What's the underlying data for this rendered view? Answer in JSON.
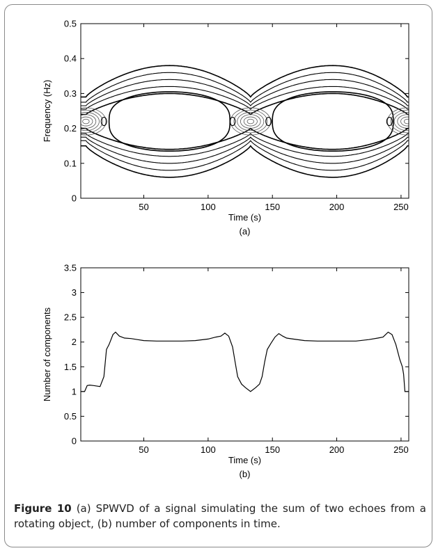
{
  "chart_data": [
    {
      "type": "contour",
      "panel_label": "(a)",
      "xlabel": "Time (s)",
      "ylabel": "Frequency (Hz)",
      "xlim": [
        1,
        256
      ],
      "ylim": [
        0,
        0.5
      ],
      "xticks": [
        50,
        100,
        150,
        200,
        250
      ],
      "yticks": [
        0,
        0.1,
        0.2,
        0.3,
        0.4,
        0.5
      ],
      "grid": false,
      "legend": "none",
      "contour_bands": [
        {
          "level": "outer",
          "half_width_at_center": 0.16,
          "half_width_at_crossing": 0.07
        },
        {
          "level": "2",
          "half_width_at_center": 0.14,
          "half_width_at_crossing": 0.055
        },
        {
          "level": "3",
          "half_width_at_center": 0.12,
          "half_width_at_crossing": 0.045
        },
        {
          "level": "4",
          "half_width_at_center": 0.1,
          "half_width_at_crossing": 0.035
        },
        {
          "level": "inner",
          "half_width_at_center": 0.08,
          "half_width_at_crossing": 0.02
        }
      ],
      "lobe_centers_time": [
        70,
        197
      ],
      "crossings_time": [
        5,
        133,
        255
      ],
      "mean_frequency": 0.22,
      "line_color": "#000000"
    },
    {
      "type": "line",
      "panel_label": "(b)",
      "xlabel": "Time (s)",
      "ylabel": "Number of components",
      "xlim": [
        1,
        256
      ],
      "ylim": [
        0,
        3.5
      ],
      "xticks": [
        50,
        100,
        150,
        200,
        250
      ],
      "yticks": [
        0,
        0.5,
        1,
        1.5,
        2,
        2.5,
        3,
        3.5
      ],
      "grid": false,
      "legend": "none",
      "x": [
        1,
        4,
        6,
        8,
        11,
        16,
        19,
        21,
        23,
        26,
        28,
        31,
        35,
        40,
        45,
        50,
        60,
        70,
        80,
        90,
        100,
        106,
        110,
        113,
        116,
        119,
        121,
        123,
        126,
        129,
        133,
        137,
        140,
        142,
        144,
        146,
        149,
        152,
        155,
        158,
        161,
        166,
        175,
        185,
        195,
        205,
        215,
        225,
        232,
        236,
        240,
        243,
        246,
        249,
        251,
        252,
        253,
        254,
        256
      ],
      "y": [
        1.0,
        1.0,
        1.12,
        1.13,
        1.12,
        1.1,
        1.3,
        1.85,
        1.95,
        2.15,
        2.2,
        2.12,
        2.08,
        2.07,
        2.05,
        2.03,
        2.02,
        2.02,
        2.02,
        2.03,
        2.06,
        2.1,
        2.12,
        2.18,
        2.12,
        1.9,
        1.6,
        1.3,
        1.15,
        1.08,
        1.0,
        1.08,
        1.15,
        1.3,
        1.6,
        1.85,
        1.98,
        2.1,
        2.17,
        2.12,
        2.08,
        2.06,
        2.03,
        2.02,
        2.02,
        2.02,
        2.02,
        2.05,
        2.08,
        2.1,
        2.2,
        2.15,
        1.95,
        1.65,
        1.5,
        1.35,
        1.0,
        1.0,
        1.0
      ],
      "line_color": "#000000"
    }
  ],
  "caption": {
    "label": "Figure 10",
    "text": " (a) SPWVD of a signal simulating the sum of two echoes from a rotating object, (b) number of components in time."
  }
}
